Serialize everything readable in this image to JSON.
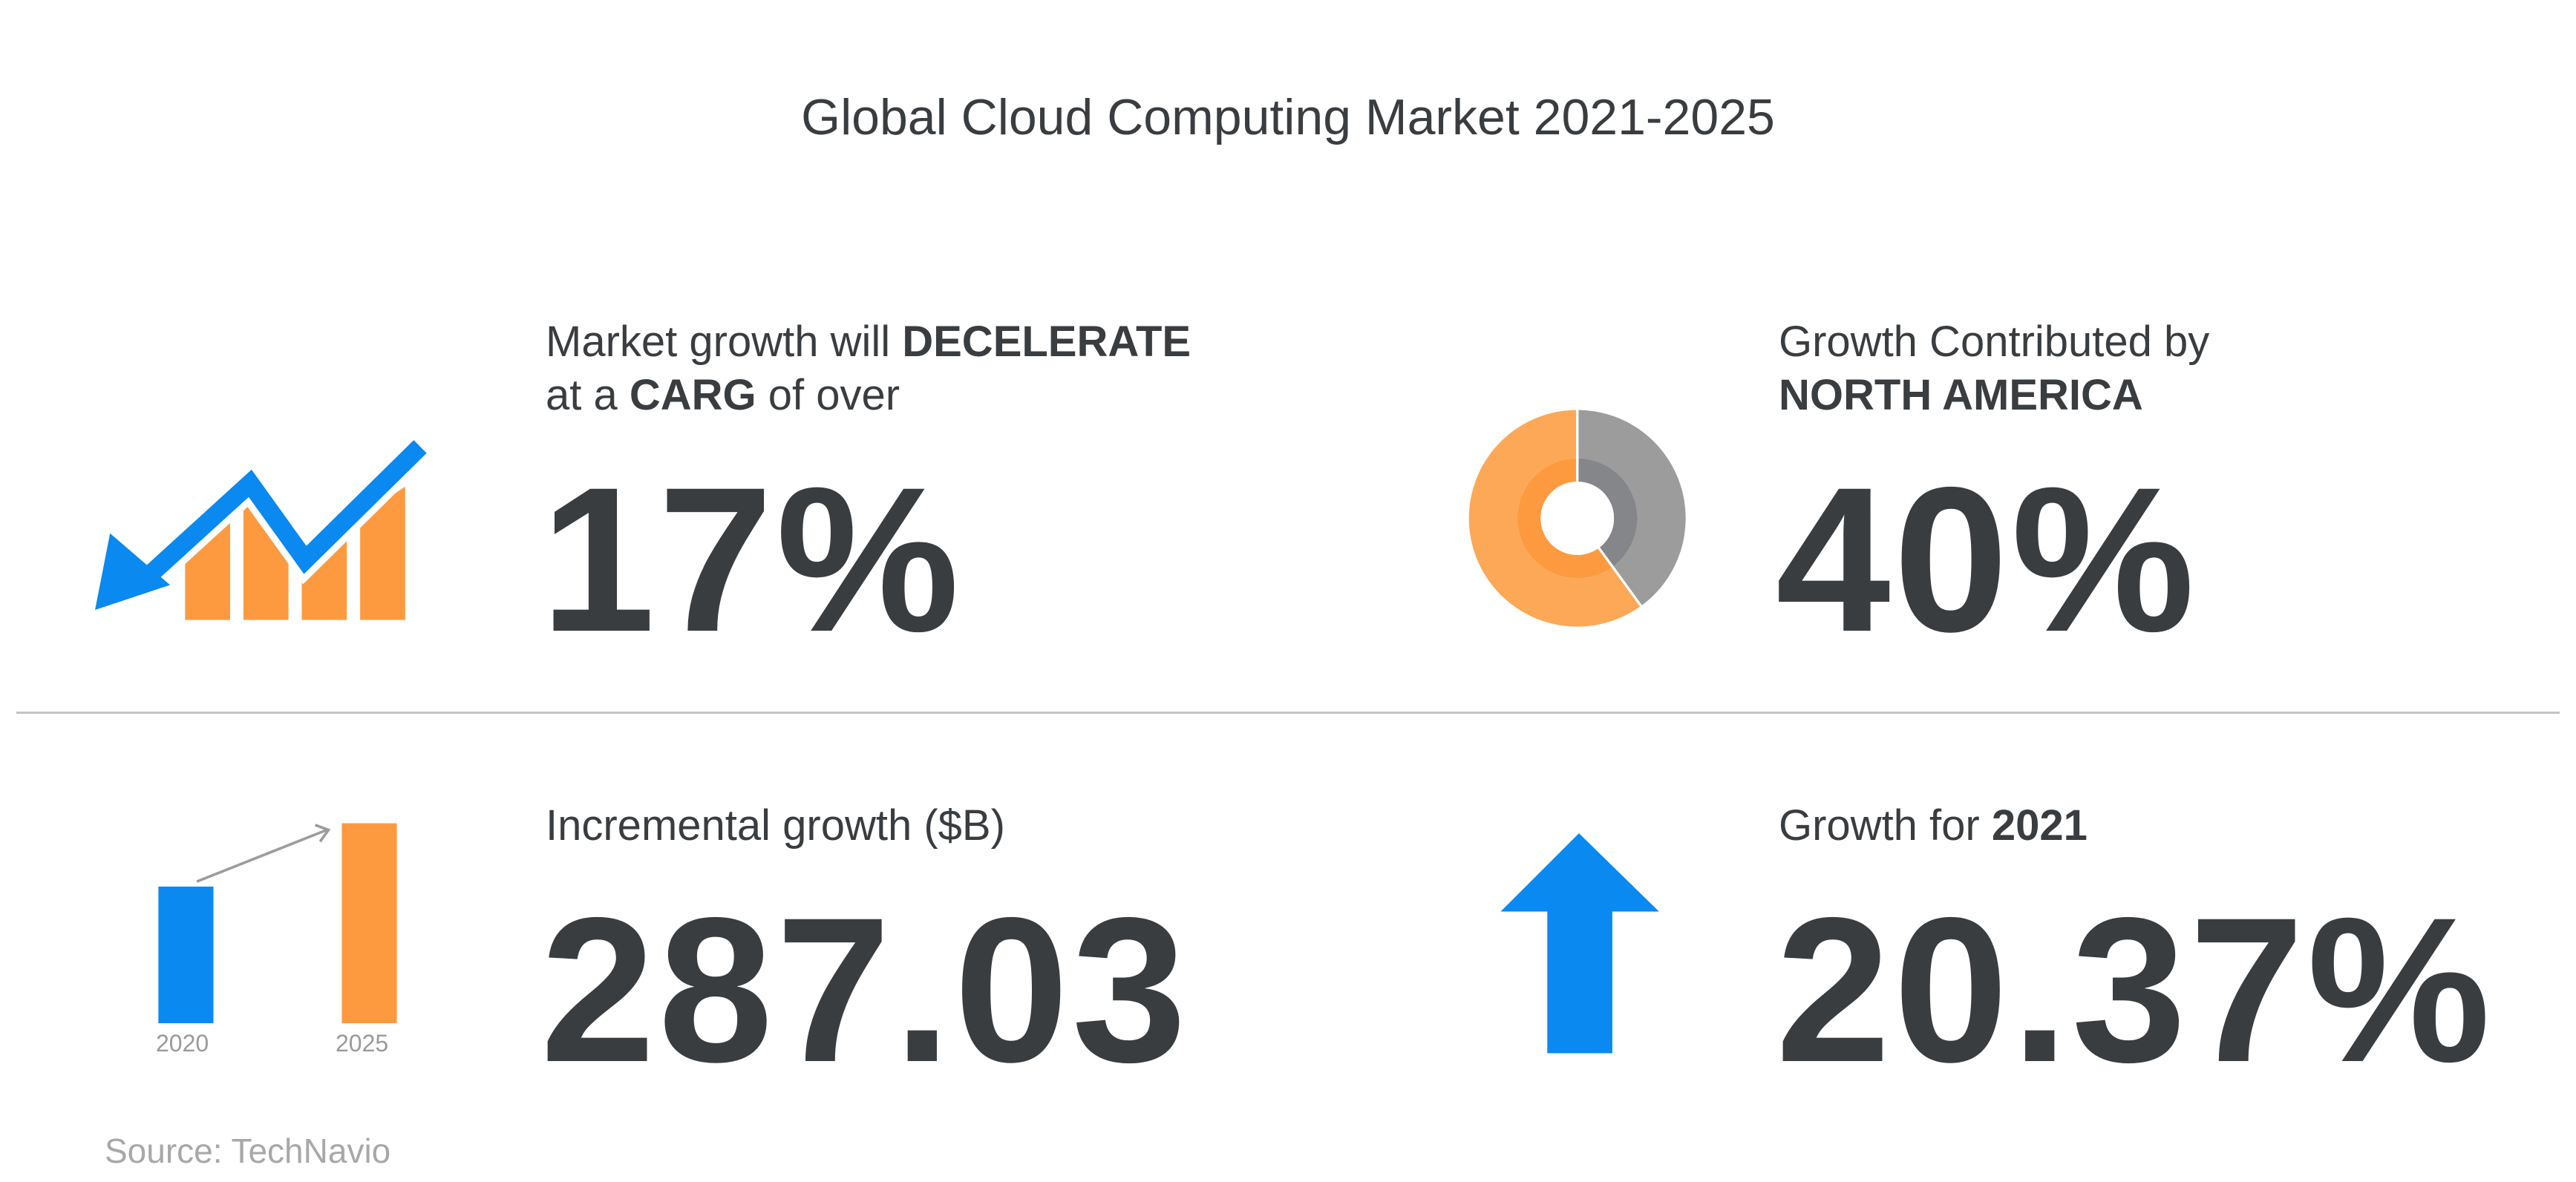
{
  "title": "Global Cloud Computing Market 2021-2025",
  "stats": [
    {
      "label_pre": "Market growth will ",
      "label_bold": "DECELERATE",
      "label_line2_pre": "at a ",
      "label_line2_bold": "CARG",
      "label_line2_post": " of over",
      "value": "17%",
      "icon": "decline-chart-icon"
    },
    {
      "label_line1": "Growth Contributed by",
      "label_bold": "NORTH AMERICA",
      "value": "40%",
      "share_percent": 40,
      "icon": "donut-chart-icon"
    },
    {
      "label": "Incremental growth ($B)",
      "value": "287.03",
      "years": [
        "2020",
        "2025"
      ],
      "icon": "bar-growth-icon"
    },
    {
      "label_pre": "Growth for ",
      "label_bold": "2021",
      "value": "20.37%",
      "icon": "up-arrow-icon"
    }
  ],
  "source": "Source: TechNavio",
  "colors": {
    "blue": "#0a89f0",
    "orange": "#fd9a3f",
    "orange_light": "#fda857",
    "grey": "#9c9c9c",
    "grey_dark": "#85868a",
    "text": "#3a3d40"
  }
}
